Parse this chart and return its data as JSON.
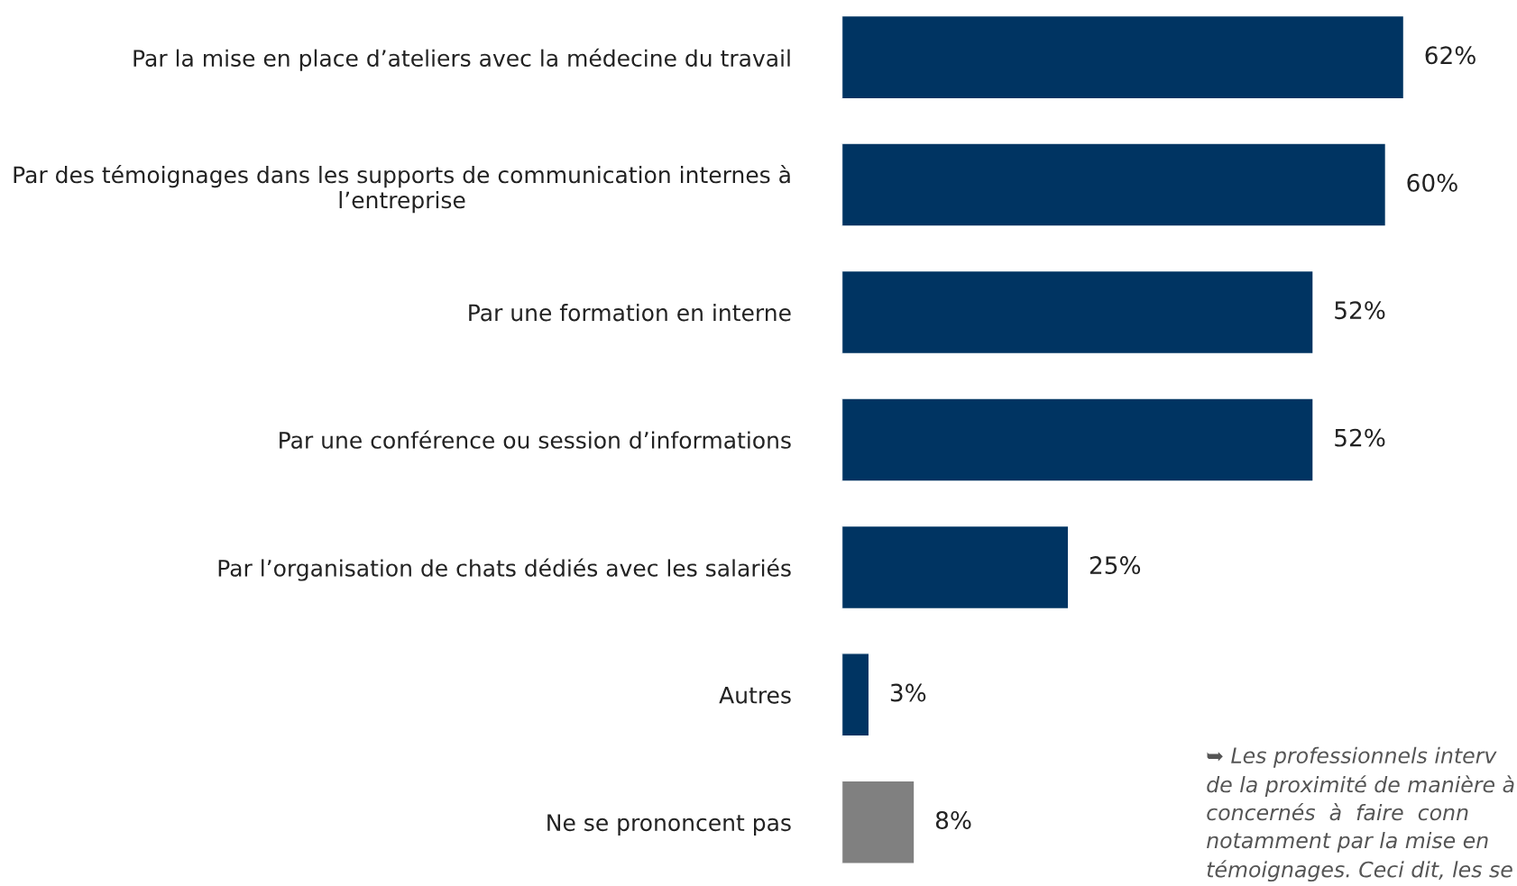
{
  "chart_data": {
    "type": "bar",
    "orientation": "horizontal",
    "categories": [
      "Par la mise en place d’ateliers avec la médecine du travail",
      "Par des témoignages dans les supports de communication internes à\nl’entreprise",
      "Par une formation en interne",
      "Par une conférence ou session d’informations",
      "Par l’organisation de chats dédiés avec les salariés",
      "Autres",
      "Ne se prononcent pas"
    ],
    "values": [
      62,
      60,
      52,
      52,
      25,
      3,
      8
    ],
    "colors": [
      "#003462",
      "#003462",
      "#003462",
      "#003462",
      "#003462",
      "#003462",
      "#808080"
    ],
    "value_labels": [
      "62%",
      "60%",
      "52%",
      "52%",
      "25%",
      "3%",
      "8%"
    ],
    "tick_labels": "y",
    "grid": false,
    "annotations": [
      "➥ Les professionnels interv\nde la proximité de manière à\nconcernés  à  faire  conn\nnotamment par la mise en\ntémoignages. Ceci dit, les se"
    ]
  }
}
